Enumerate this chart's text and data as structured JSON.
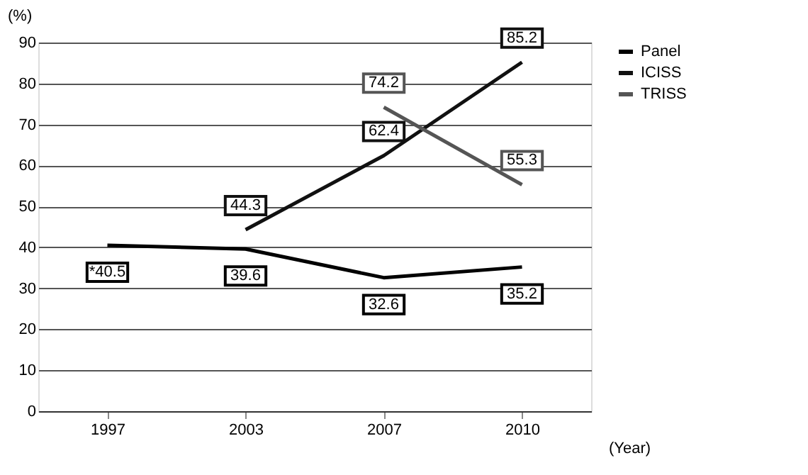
{
  "chart_data": {
    "type": "line",
    "xlabel": "(Year)",
    "ylabel": "(%)",
    "categories": [
      "1997",
      "2003",
      "2007",
      "2010"
    ],
    "series": [
      {
        "name": "Panel",
        "color": "#000000",
        "values": [
          40.5,
          39.6,
          32.6,
          35.2
        ],
        "value_labels": [
          "*40.5",
          "39.6",
          "32.6",
          "35.2"
        ]
      },
      {
        "name": "ICISS",
        "color": "#111111",
        "values": [
          null,
          44.3,
          62.4,
          85.2
        ],
        "value_labels": [
          null,
          "44.3",
          "62.4",
          "85.2"
        ]
      },
      {
        "name": "TRISS",
        "color": "#555555",
        "values": [
          null,
          null,
          74.2,
          55.3
        ],
        "value_labels": [
          null,
          null,
          "74.2",
          "55.3"
        ]
      }
    ],
    "ylim": [
      0,
      90
    ],
    "yticks": [
      0,
      10,
      20,
      30,
      40,
      50,
      60,
      70,
      80,
      90
    ],
    "grid": "y",
    "legend": "right",
    "marker": "none",
    "line_style": "solid"
  }
}
